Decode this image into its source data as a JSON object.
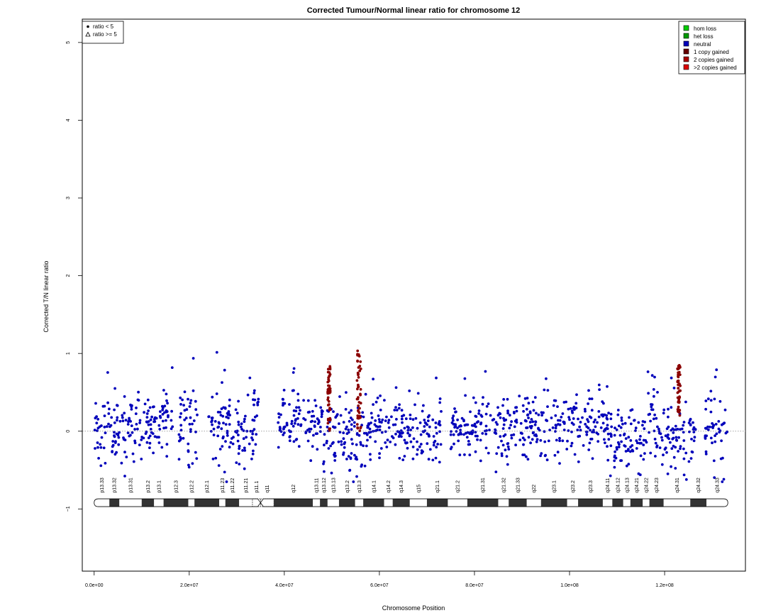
{
  "chart_data": {
    "type": "scatter",
    "title": "Corrected Tumour/Normal linear ratio for chromosome  12",
    "xlabel": "Chromosome Position",
    "ylabel": "Corrected T/N linear ratio",
    "xlim": [
      -2500000,
      137000000
    ],
    "ylim": [
      -1.8,
      5.3
    ],
    "x_ticks": [
      0,
      20000000,
      40000000,
      60000000,
      80000000,
      100000000,
      120000000
    ],
    "x_tick_labels": [
      "0.0e+00",
      "2.0e+07",
      "4.0e+07",
      "6.0e+07",
      "8.0e+07",
      "1.0e+08",
      "1.2e+08"
    ],
    "y_ticks": [
      -1,
      0,
      1,
      2,
      3,
      4,
      5
    ],
    "y_tick_labels": [
      "−1",
      "0",
      "1",
      "2",
      "3",
      "4",
      "5"
    ],
    "reference_line": 0,
    "grid": false,
    "legend_left": {
      "position": "top-left",
      "entries": [
        {
          "label": "ratio < 5",
          "marker": "filled-circle"
        },
        {
          "label": "ratio >= 5",
          "marker": "open-triangle"
        }
      ]
    },
    "legend_right": {
      "position": "top-right",
      "entries": [
        {
          "label": "hom loss",
          "color": "#00cc00"
        },
        {
          "label": "het loss",
          "color": "#009900"
        },
        {
          "label": "neutral",
          "color": "#0000bb"
        },
        {
          "label": "1 copy gained",
          "color": "#660000"
        },
        {
          "label": "2 copies gained",
          "color": "#aa0000"
        },
        {
          "label": ">2 copies gained",
          "color": "#dd0000"
        }
      ]
    },
    "point_colors": {
      "neutral": "#0000bb",
      "gained": "#8b0000"
    },
    "segments": [
      {
        "start": 0,
        "end": 1200000,
        "mean": 0.05,
        "sd": 0.25
      },
      {
        "start": 1200000,
        "end": 8700000,
        "mean": 0.0,
        "sd": 0.22
      },
      {
        "start": 8700000,
        "end": 16500000,
        "mean": 0.1,
        "sd": 0.2
      },
      {
        "start": 17800000,
        "end": 22000000,
        "mean": 0.1,
        "sd": 0.22
      },
      {
        "start": 24000000,
        "end": 33700000,
        "mean": 0.0,
        "sd": 0.2
      },
      {
        "start": 33200000,
        "end": 34600000,
        "mean": 0.2,
        "sd": 0.2
      },
      {
        "start": 38700000,
        "end": 48200000,
        "mean": 0.1,
        "sd": 0.2
      },
      {
        "start": 48200000,
        "end": 57500000,
        "mean": -0.05,
        "sd": 0.22
      },
      {
        "start": 57500000,
        "end": 65000000,
        "mean": 0.05,
        "sd": 0.2
      },
      {
        "start": 65000000,
        "end": 73000000,
        "mean": 0.0,
        "sd": 0.2
      },
      {
        "start": 75000000,
        "end": 86000000,
        "mean": 0.0,
        "sd": 0.2
      },
      {
        "start": 86000000,
        "end": 108000000,
        "mean": 0.05,
        "sd": 0.22
      },
      {
        "start": 108000000,
        "end": 116000000,
        "mean": -0.1,
        "sd": 0.22
      },
      {
        "start": 116000000,
        "end": 118000000,
        "mean": 0.2,
        "sd": 0.3
      },
      {
        "start": 118000000,
        "end": 126500000,
        "mean": -0.05,
        "sd": 0.22
      },
      {
        "start": 128500000,
        "end": 133200000,
        "mean": 0.0,
        "sd": 0.25
      }
    ],
    "gained_clusters": [
      {
        "x": 49400000,
        "spread": 300000,
        "ymin": 0.0,
        "ymax": 0.85
      },
      {
        "x": 55700000,
        "spread": 400000,
        "ymin": 0.0,
        "ymax": 1.05
      },
      {
        "x": 123000000,
        "spread": 300000,
        "ymin": 0.2,
        "ymax": 0.85
      }
    ],
    "ideogram": {
      "y": -0.92,
      "centromere": 35000000,
      "bands": [
        {
          "name": "p13.33",
          "start": 0,
          "end": 3200000,
          "stain": "gneg"
        },
        {
          "name": "p13.32",
          "start": 3200000,
          "end": 5300000,
          "stain": "gpos"
        },
        {
          "name": "p13.31",
          "start": 5300000,
          "end": 10000000,
          "stain": "gneg"
        },
        {
          "name": "p13.2",
          "start": 10000000,
          "end": 12600000,
          "stain": "gpos"
        },
        {
          "name": "p13.1",
          "start": 12600000,
          "end": 14600000,
          "stain": "gneg"
        },
        {
          "name": "p12.3",
          "start": 14600000,
          "end": 19800000,
          "stain": "gpos"
        },
        {
          "name": "p12.2",
          "start": 19800000,
          "end": 21100000,
          "stain": "gneg"
        },
        {
          "name": "p12.1",
          "start": 21100000,
          "end": 26300000,
          "stain": "gpos"
        },
        {
          "name": "p11.23",
          "start": 26300000,
          "end": 27600000,
          "stain": "gneg"
        },
        {
          "name": "p11.22",
          "start": 27600000,
          "end": 30500000,
          "stain": "gpos"
        },
        {
          "name": "p11.21",
          "start": 30500000,
          "end": 33300000,
          "stain": "gneg"
        },
        {
          "name": "p11.1",
          "start": 33300000,
          "end": 35000000,
          "stain": "stalk"
        },
        {
          "name": "q11",
          "start": 35000000,
          "end": 37800000,
          "stain": "stalk"
        },
        {
          "name": "q12",
          "start": 37800000,
          "end": 46000000,
          "stain": "gpos"
        },
        {
          "name": "q13.11",
          "start": 46000000,
          "end": 47500000,
          "stain": "gneg"
        },
        {
          "name": "q13.12",
          "start": 47500000,
          "end": 49100000,
          "stain": "gpos"
        },
        {
          "name": "q13.13",
          "start": 49100000,
          "end": 51500000,
          "stain": "gneg"
        },
        {
          "name": "q13.2",
          "start": 51500000,
          "end": 54900000,
          "stain": "gpos"
        },
        {
          "name": "q13.3",
          "start": 54900000,
          "end": 56600000,
          "stain": "gneg"
        },
        {
          "name": "q14.1",
          "start": 56600000,
          "end": 61000000,
          "stain": "gpos"
        },
        {
          "name": "q14.2",
          "start": 61000000,
          "end": 62800000,
          "stain": "gneg"
        },
        {
          "name": "q14.3",
          "start": 62800000,
          "end": 66400000,
          "stain": "gpos"
        },
        {
          "name": "q15",
          "start": 66400000,
          "end": 70000000,
          "stain": "gneg"
        },
        {
          "name": "q21.1",
          "start": 70000000,
          "end": 74400000,
          "stain": "gpos"
        },
        {
          "name": "q21.2",
          "start": 74400000,
          "end": 78500000,
          "stain": "gneg"
        },
        {
          "name": "q21.31",
          "start": 78500000,
          "end": 85000000,
          "stain": "gpos"
        },
        {
          "name": "q21.32",
          "start": 85000000,
          "end": 87200000,
          "stain": "gneg"
        },
        {
          "name": "q21.33",
          "start": 87200000,
          "end": 91000000,
          "stain": "gpos"
        },
        {
          "name": "q22",
          "start": 91000000,
          "end": 94000000,
          "stain": "gneg"
        },
        {
          "name": "q23.1",
          "start": 94000000,
          "end": 99500000,
          "stain": "gpos"
        },
        {
          "name": "q23.2",
          "start": 99500000,
          "end": 101800000,
          "stain": "gneg"
        },
        {
          "name": "q23.3",
          "start": 101800000,
          "end": 107000000,
          "stain": "gpos"
        },
        {
          "name": "q24.11",
          "start": 107000000,
          "end": 109000000,
          "stain": "gneg"
        },
        {
          "name": "q24.12",
          "start": 109000000,
          "end": 111300000,
          "stain": "gpos"
        },
        {
          "name": "q24.13",
          "start": 111300000,
          "end": 112800000,
          "stain": "gneg"
        },
        {
          "name": "q24.21",
          "start": 112800000,
          "end": 115400000,
          "stain": "gpos"
        },
        {
          "name": "q24.22",
          "start": 115400000,
          "end": 116800000,
          "stain": "gneg"
        },
        {
          "name": "q24.23",
          "start": 116800000,
          "end": 119800000,
          "stain": "gpos"
        },
        {
          "name": "q24.31",
          "start": 119800000,
          "end": 125400000,
          "stain": "gneg"
        },
        {
          "name": "q24.32",
          "start": 125400000,
          "end": 128800000,
          "stain": "gpos"
        },
        {
          "name": "q24.33",
          "start": 128800000,
          "end": 133300000,
          "stain": "gneg"
        }
      ]
    }
  }
}
